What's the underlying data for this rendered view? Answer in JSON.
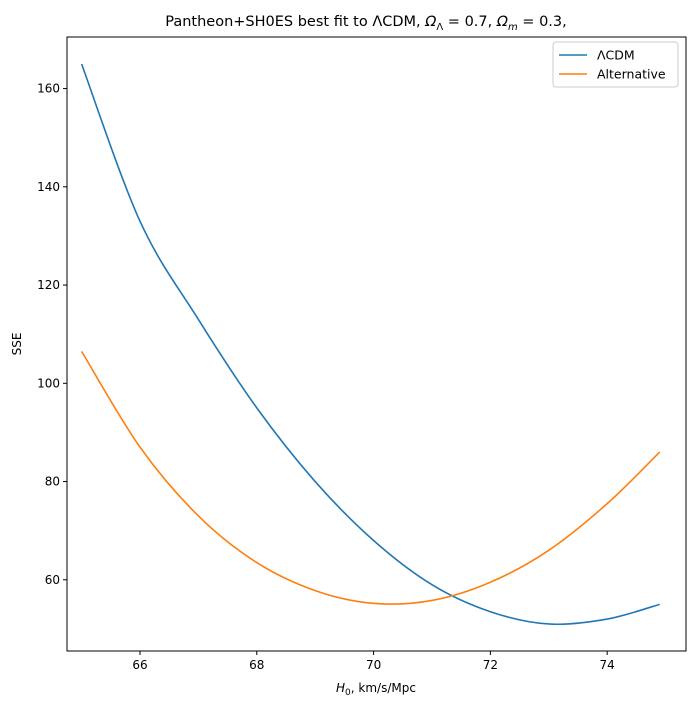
{
  "chart_data": {
    "type": "line",
    "title": {
      "prefix": "Pantheon+SH0ES best fit to ",
      "lcdm_symbol": "Λ",
      "lcdm_text": "CDM, ",
      "omega": "Ω",
      "sub_lambda": "Λ",
      "eq1": " = 0.7, ",
      "sub_m": "m",
      "eq2": " = 0.3,"
    },
    "xlabel": {
      "symbol": "H",
      "sub": "0",
      "rest": ", km/s/Mpc"
    },
    "ylabel": "SSE",
    "xlim": [
      64.75,
      75.35
    ],
    "ylim": [
      45.5,
      170.5
    ],
    "xticks": [
      66,
      68,
      70,
      72,
      74
    ],
    "yticks": [
      60,
      80,
      100,
      120,
      140,
      160
    ],
    "legend_position": "top-right",
    "series": [
      {
        "name": "ΛCDM",
        "color": "#1f77b4",
        "x": [
          65,
          66,
          67,
          68,
          69,
          70,
          71,
          72,
          73,
          74,
          74.9
        ],
        "y": [
          165,
          133,
          113,
          95,
          80,
          68,
          59,
          53.5,
          51,
          52,
          55
        ]
      },
      {
        "name": "Alternative",
        "color": "#ff7f0e",
        "x": [
          65,
          66,
          67,
          68,
          69,
          70,
          71,
          72,
          73,
          74,
          74.9
        ],
        "y": [
          106.5,
          87,
          73,
          63.5,
          57.8,
          55.2,
          55.8,
          59.5,
          66,
          75.5,
          86
        ]
      }
    ]
  }
}
